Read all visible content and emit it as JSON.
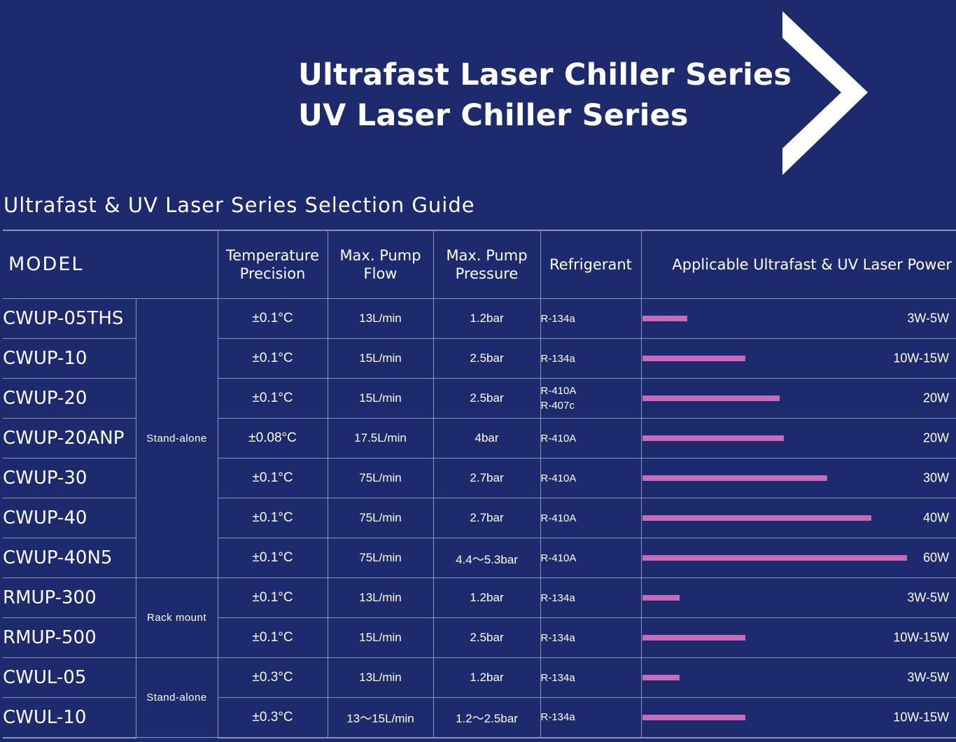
{
  "banner": {
    "line1": "Ultrafast Laser Chiller Series",
    "line2": "UV Laser Chiller Series"
  },
  "guide_title": "Ultrafast & UV Laser Series Selection Guide",
  "colors": {
    "background": "#1d2a6e",
    "bar": "#c86bb8",
    "text": "#ffffff",
    "rule": "#8a93bd"
  },
  "table": {
    "headers": {
      "model": "MODEL",
      "temp": "Temperature Precision",
      "flow": "Max. Pump Flow",
      "pressure": "Max. Pump Pressure",
      "refrigerant": "Refrigerant",
      "power": "Applicable Ultrafast & UV Laser Power"
    },
    "groups": [
      "Stand-alone",
      "Rack mount",
      "Stand-alone"
    ],
    "rows": [
      {
        "model": "CWUP-05THS",
        "temp": "±0.1°C",
        "flow": "13L/min",
        "pressure": "1.2bar",
        "refrigerant": [
          "R-134a"
        ],
        "power": "3W-5W",
        "power_level": 0.17
      },
      {
        "model": "CWUP-10",
        "temp": "±0.1°C",
        "flow": "15L/min",
        "pressure": "2.5bar",
        "refrigerant": [
          "R-134a"
        ],
        "power": "10W-15W",
        "power_level": 0.39
      },
      {
        "model": "CWUP-20",
        "temp": "±0.1°C",
        "flow": "15L/min",
        "pressure": "2.5bar",
        "refrigerant": [
          "R-410A",
          "R-407c"
        ],
        "power": "20W",
        "power_level": 0.52
      },
      {
        "model": "CWUP-20ANP",
        "temp": "±0.08°C",
        "flow": "17.5L/min",
        "pressure": "4bar",
        "refrigerant": [
          "R-410A"
        ],
        "power": "20W",
        "power_level": 0.535
      },
      {
        "model": "CWUP-30",
        "temp": "±0.1°C",
        "flow": "75L/min",
        "pressure": "2.7bar",
        "refrigerant": [
          "R-410A"
        ],
        "power": "30W",
        "power_level": 0.7
      },
      {
        "model": "CWUP-40",
        "temp": "±0.1°C",
        "flow": "75L/min",
        "pressure": "2.7bar",
        "refrigerant": [
          "R-410A"
        ],
        "power": "40W",
        "power_level": 0.865
      },
      {
        "model": "CWUP-40N5",
        "temp": "±0.1°C",
        "flow": "75L/min",
        "pressure": "4.4～5.3bar",
        "refrigerant": [
          "R-410A"
        ],
        "power": "60W",
        "power_level": 1.0
      },
      {
        "model": "RMUP-300",
        "temp": "±0.1°C",
        "flow": "13L/min",
        "pressure": "1.2bar",
        "refrigerant": [
          "R-134a"
        ],
        "power": "3W-5W",
        "power_level": 0.14
      },
      {
        "model": "RMUP-500",
        "temp": "±0.1°C",
        "flow": "15L/min",
        "pressure": "2.5bar",
        "refrigerant": [
          "R-134a"
        ],
        "power": "10W-15W",
        "power_level": 0.39
      },
      {
        "model": "CWUL-05",
        "temp": "±0.3°C",
        "flow": "13L/min",
        "pressure": "1.2bar",
        "refrigerant": [
          "R-134a"
        ],
        "power": "3W-5W",
        "power_level": 0.14
      },
      {
        "model": "CWUL-10",
        "temp": "±0.3°C",
        "flow": "13～15L/min",
        "pressure": "1.2～2.5bar",
        "refrigerant": [
          "R-134a"
        ],
        "power": "10W-15W",
        "power_level": 0.39
      }
    ]
  }
}
